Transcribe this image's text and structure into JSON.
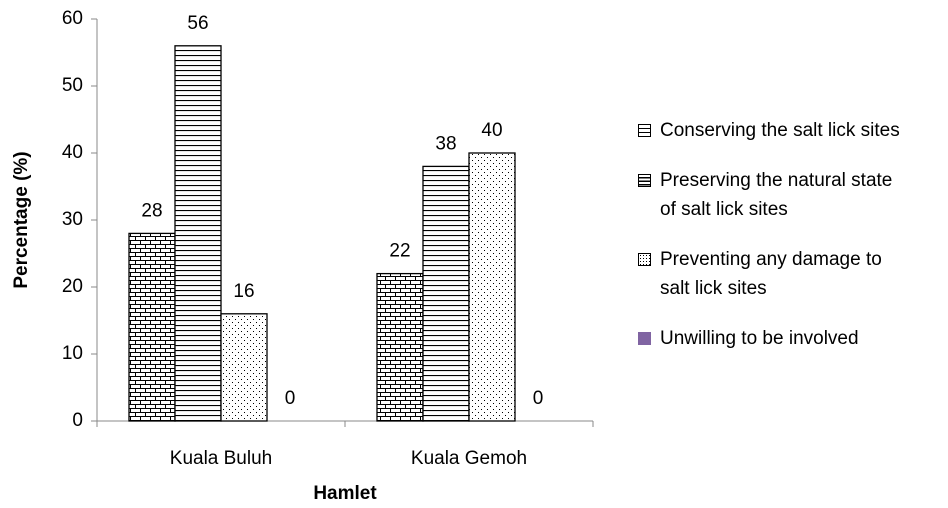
{
  "chart_data": {
    "type": "bar",
    "categories": [
      "Kuala Buluh",
      "Kuala Gemoh"
    ],
    "series": [
      {
        "name": "Conserving the salt lick sites",
        "color": "#000000",
        "pattern": "brick",
        "values": [
          28,
          22
        ]
      },
      {
        "name": "Preserving the natural state of salt lick sites",
        "color": "#000000",
        "pattern": "horizontal",
        "values": [
          56,
          38
        ]
      },
      {
        "name": "Preventing any damage to salt lick sites",
        "color": "#000000",
        "pattern": "dots",
        "values": [
          16,
          40
        ]
      },
      {
        "name": "Unwilling to be involved",
        "color": "#8064a2",
        "pattern": "solid",
        "values": [
          0,
          0
        ]
      }
    ],
    "ylabel": "Percentage (%)",
    "xlabel": "Hamlet",
    "ylim": [
      0,
      60
    ],
    "yticks": [
      0,
      10,
      20,
      30,
      40,
      50,
      60
    ],
    "grid": false,
    "legend": "right"
  }
}
